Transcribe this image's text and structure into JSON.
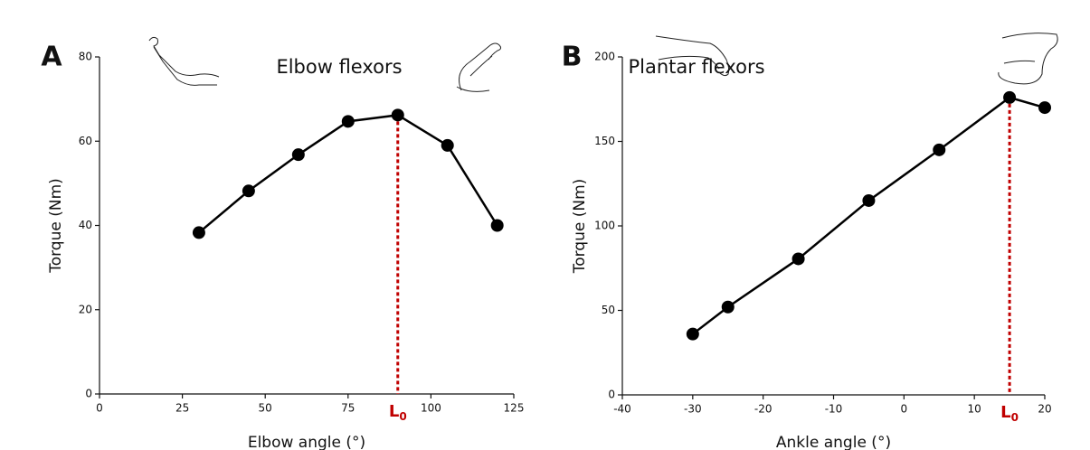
{
  "chart_data": [
    {
      "type": "line",
      "panel_label": "A",
      "title": "Elbow flexors",
      "x_label": "Elbow angle (°)",
      "y_label": "Torque (Nm)",
      "x": [
        30,
        45,
        60,
        75,
        90,
        105,
        120
      ],
      "values": [
        38.3,
        48.2,
        56.8,
        64.7,
        66.2,
        59.0,
        40.0
      ],
      "color": "#000000",
      "xlim": [
        0,
        125
      ],
      "xticks": [
        0,
        25,
        50,
        75,
        100,
        125
      ],
      "ylim": [
        0,
        80
      ],
      "yticks": [
        0,
        20,
        40,
        60,
        80
      ],
      "reference": {
        "x": 90,
        "color": "#c00000",
        "label": "L",
        "label_subscript": "0"
      }
    },
    {
      "type": "line",
      "panel_label": "B",
      "title": "Plantar flexors",
      "x_label": "Ankle angle (°)",
      "y_label": "Torque (Nm)",
      "x": [
        -30,
        -25,
        -15,
        -5,
        5,
        15,
        20
      ],
      "values": [
        36,
        52,
        80.5,
        115,
        145,
        176,
        170
      ],
      "color": "#000000",
      "xlim": [
        -40,
        20
      ],
      "xticks": [
        -40,
        -30,
        -20,
        -10,
        0,
        10,
        20
      ],
      "ylim": [
        0,
        200
      ],
      "yticks": [
        0,
        50,
        100,
        150,
        200
      ],
      "reference": {
        "x": 15,
        "color": "#c00000",
        "label": "L",
        "label_subscript": "0"
      }
    }
  ]
}
